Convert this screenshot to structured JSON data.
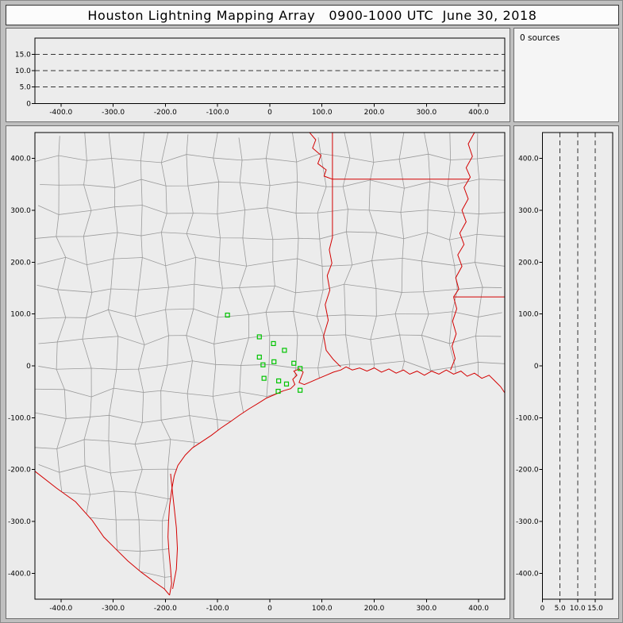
{
  "title_bar": {
    "title": "Houston Lightning Mapping Array   0900-1000 UTC  June 30, 2018"
  },
  "sources_panel": {
    "text": "0 sources"
  },
  "colors": {
    "frame_bg": "#bfbfbf",
    "plot_bg": "#ececec",
    "axis": "#000000",
    "grid_dash": "#333333",
    "county_line": "#9a9a9a",
    "state_border": "#d40000",
    "station": "#00c400"
  },
  "chart_data": {
    "type": "scatter",
    "title": "Houston Lightning Mapping Array   0900-1000 UTC  June 30, 2018",
    "annotation": "0 sources",
    "legend": "none",
    "grid": "dashed altitude gridlines at 5, 10, 15 km",
    "shared_axes": {
      "ew_km": {
        "range": [
          -450,
          450
        ],
        "ticks": [
          -400,
          -300,
          -200,
          -100,
          0,
          100,
          200,
          300,
          400
        ],
        "tick_labels": [
          "-400.0",
          "-300.0",
          "-200.0",
          "-100.0",
          "0",
          "100.0",
          "200.0",
          "300.0",
          "400.0"
        ]
      },
      "ns_km": {
        "range": [
          -450,
          450
        ],
        "ticks": [
          400,
          300,
          200,
          100,
          0,
          -100,
          -200,
          -300,
          -400
        ],
        "tick_labels": [
          "400.0",
          "300.0",
          "200.0",
          "100.0",
          "0",
          "-100.0",
          "-200.0",
          "-300.0",
          "-400.0"
        ]
      },
      "alt_km": {
        "range": [
          0,
          20
        ],
        "ticks": [
          0,
          5,
          10,
          15
        ],
        "tick_labels": [
          "0",
          "5.0",
          "10.0",
          "15.0"
        ],
        "dashed_gridlines": [
          5,
          10,
          15
        ]
      }
    },
    "panels": [
      {
        "id": "alt-ew",
        "desc": "altitude vs east-west distance (no sources plotted)",
        "x_axis": "ew_km",
        "y_axis": "alt_km",
        "points": []
      },
      {
        "id": "plan-map",
        "desc": "plan view map with county lines, state borders, coastline and LMA stations",
        "x_axis": "ew_km",
        "y_axis": "ns_km",
        "points": [],
        "stations_km": [
          [
            -81,
            98
          ],
          [
            -20,
            56
          ],
          [
            7,
            43
          ],
          [
            28,
            30
          ],
          [
            -20,
            17
          ],
          [
            -13,
            2
          ],
          [
            8,
            8
          ],
          [
            46,
            5
          ],
          [
            58,
            -5
          ],
          [
            -11,
            -24
          ],
          [
            17,
            -29
          ],
          [
            32,
            -35
          ],
          [
            16,
            -49
          ],
          [
            58,
            -47
          ]
        ],
        "map_layers": {
          "rio_grande": [
            [
              -450,
              -203
            ],
            [
              -408,
              -236
            ],
            [
              -372,
              -262
            ],
            [
              -340,
              -298
            ],
            [
              -318,
              -330
            ],
            [
              -296,
              -352
            ],
            [
              -272,
              -376
            ],
            [
              -246,
              -398
            ],
            [
              -222,
              -416
            ],
            [
              -202,
              -430
            ],
            [
              -192,
              -442
            ]
          ],
          "coastline": [
            [
              -192,
              -442
            ],
            [
              -188,
              -420
            ],
            [
              -190,
              -392
            ],
            [
              -193,
              -360
            ],
            [
              -195,
              -330
            ],
            [
              -194,
              -300
            ],
            [
              -192,
              -270
            ],
            [
              -188,
              -240
            ],
            [
              -183,
              -212
            ],
            [
              -176,
              -192
            ],
            [
              -162,
              -172
            ],
            [
              -148,
              -158
            ],
            [
              -130,
              -146
            ],
            [
              -112,
              -134
            ],
            [
              -94,
              -120
            ],
            [
              -76,
              -108
            ],
            [
              -58,
              -95
            ],
            [
              -40,
              -83
            ],
            [
              -22,
              -72
            ],
            [
              -6,
              -62
            ],
            [
              10,
              -55
            ],
            [
              26,
              -48
            ],
            [
              40,
              -44
            ],
            [
              48,
              -36
            ],
            [
              44,
              -26
            ],
            [
              52,
              -18
            ],
            [
              46,
              -10
            ],
            [
              56,
              -6
            ],
            [
              64,
              -12
            ],
            [
              60,
              -22
            ],
            [
              56,
              -32
            ],
            [
              66,
              -36
            ],
            [
              80,
              -30
            ],
            [
              94,
              -24
            ],
            [
              108,
              -18
            ],
            [
              122,
              -12
            ],
            [
              136,
              -8
            ],
            [
              146,
              -2
            ],
            [
              158,
              -8
            ],
            [
              172,
              -4
            ],
            [
              186,
              -10
            ],
            [
              200,
              -4
            ],
            [
              214,
              -12
            ],
            [
              228,
              -6
            ],
            [
              242,
              -14
            ],
            [
              256,
              -8
            ],
            [
              268,
              -16
            ],
            [
              282,
              -10
            ],
            [
              296,
              -18
            ],
            [
              310,
              -10
            ],
            [
              324,
              -16
            ],
            [
              338,
              -8
            ],
            [
              352,
              -16
            ],
            [
              366,
              -10
            ],
            [
              378,
              -20
            ],
            [
              392,
              -14
            ],
            [
              406,
              -24
            ],
            [
              420,
              -18
            ],
            [
              432,
              -30
            ],
            [
              442,
              -40
            ],
            [
              450,
              -52
            ]
          ],
          "barrier_island": [
            [
              -186,
              -430
            ],
            [
              -179,
              -392
            ],
            [
              -177,
              -352
            ],
            [
              -179,
              -312
            ],
            [
              -183,
              -274
            ],
            [
              -187,
              -238
            ],
            [
              -190,
              -208
            ]
          ],
          "state_borders": [
            [
              [
                120,
                450
              ],
              [
                120,
                248
              ],
              [
                114,
                224
              ],
              [
                119,
                198
              ],
              [
                110,
                174
              ],
              [
                115,
                146
              ],
              [
                106,
                118
              ],
              [
                112,
                88
              ],
              [
                103,
                58
              ],
              [
                108,
                30
              ],
              [
                122,
                12
              ],
              [
                136,
                -2
              ]
            ],
            [
              [
                120,
                360
              ],
              [
                381,
                360
              ]
            ],
            [
              [
                76,
                450
              ],
              [
                88,
                436
              ],
              [
                82,
                420
              ],
              [
                98,
                406
              ],
              [
                92,
                390
              ],
              [
                108,
                378
              ],
              [
                104,
                366
              ],
              [
                120,
                360
              ]
            ],
            [
              [
                392,
                450
              ],
              [
                380,
                428
              ],
              [
                388,
                404
              ],
              [
                376,
                382
              ],
              [
                384,
                364
              ],
              [
                372,
                344
              ],
              [
                380,
                322
              ],
              [
                368,
                300
              ],
              [
                376,
                278
              ],
              [
                364,
                256
              ],
              [
                372,
                234
              ],
              [
                360,
                214
              ],
              [
                368,
                192
              ],
              [
                356,
                170
              ],
              [
                362,
                148
              ],
              [
                352,
                133
              ]
            ],
            [
              [
                352,
                133
              ],
              [
                450,
                133
              ]
            ],
            [
              [
                352,
                133
              ],
              [
                358,
                110
              ],
              [
                350,
                86
              ],
              [
                357,
                62
              ],
              [
                349,
                38
              ],
              [
                355,
                14
              ],
              [
                346,
                -8
              ]
            ]
          ]
        }
      },
      {
        "id": "alt-ns",
        "desc": "altitude vs north-south distance (no sources plotted)",
        "x_axis": "alt_km",
        "y_axis": "ns_km",
        "points": []
      }
    ]
  }
}
